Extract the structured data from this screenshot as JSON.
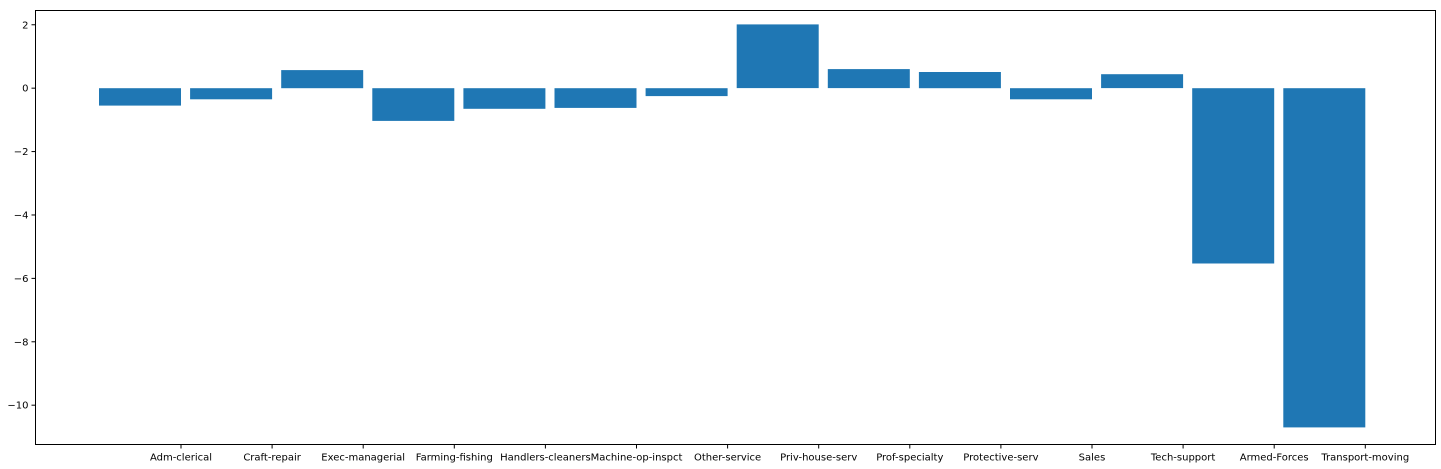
{
  "chart_data": {
    "type": "bar",
    "title": "",
    "xlabel": "",
    "ylabel": "",
    "categories": [
      "Adm-clerical",
      "Craft-repair",
      "Exec-managerial",
      "Farming-fishing",
      "Handlers-cleaners",
      "Machine-op-inspct",
      "Other-service",
      "Priv-house-serv",
      "Prof-specialty",
      "Protective-serv",
      "Sales",
      "Tech-support",
      "Armed-Forces",
      "Transport-moving"
    ],
    "values": [
      -0.55,
      -0.35,
      0.57,
      -1.03,
      -0.65,
      -0.62,
      -0.25,
      2.01,
      0.6,
      0.51,
      -0.35,
      0.44,
      -5.53,
      -10.7
    ],
    "ylim": [
      -11.24,
      2.45
    ],
    "yticks": [
      2,
      0,
      -2,
      -4,
      -6,
      -8,
      -10
    ],
    "ytick_labels": [
      "2",
      "0",
      "−2",
      "−4",
      "−6",
      "−8",
      "−10"
    ],
    "bar_color": "#1f77b4",
    "grid": false,
    "note": "Category labels appear shifted right by one bar position relative to bars, as in the original figure."
  }
}
